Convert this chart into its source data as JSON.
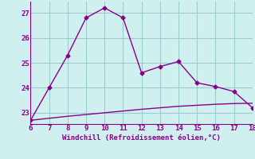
{
  "x_windchill": [
    6,
    7,
    8,
    9,
    10,
    11,
    12,
    13,
    14,
    15,
    16,
    17,
    18
  ],
  "y_windchill": [
    22.7,
    24.0,
    25.3,
    26.8,
    27.2,
    26.8,
    24.6,
    24.85,
    25.05,
    24.2,
    24.05,
    23.85,
    23.2
  ],
  "x_temp": [
    6,
    7,
    8,
    9,
    10,
    11,
    12,
    13,
    14,
    15,
    16,
    17,
    18
  ],
  "y_temp": [
    22.7,
    22.78,
    22.86,
    22.93,
    23.0,
    23.07,
    23.14,
    23.2,
    23.26,
    23.3,
    23.34,
    23.37,
    23.38
  ],
  "line_color": "#880088",
  "bg_color": "#d0f0f0",
  "grid_color": "#99cccc",
  "xlabel": "Windchill (Refroidissement éolien,°C)",
  "xlim": [
    6,
    18
  ],
  "ylim": [
    22.55,
    27.45
  ],
  "yticks": [
    23,
    24,
    25,
    26,
    27
  ],
  "xticks": [
    6,
    7,
    8,
    9,
    10,
    11,
    12,
    13,
    14,
    15,
    16,
    17,
    18
  ],
  "marker": "D",
  "markersize": 2.5,
  "linewidth": 1.0
}
